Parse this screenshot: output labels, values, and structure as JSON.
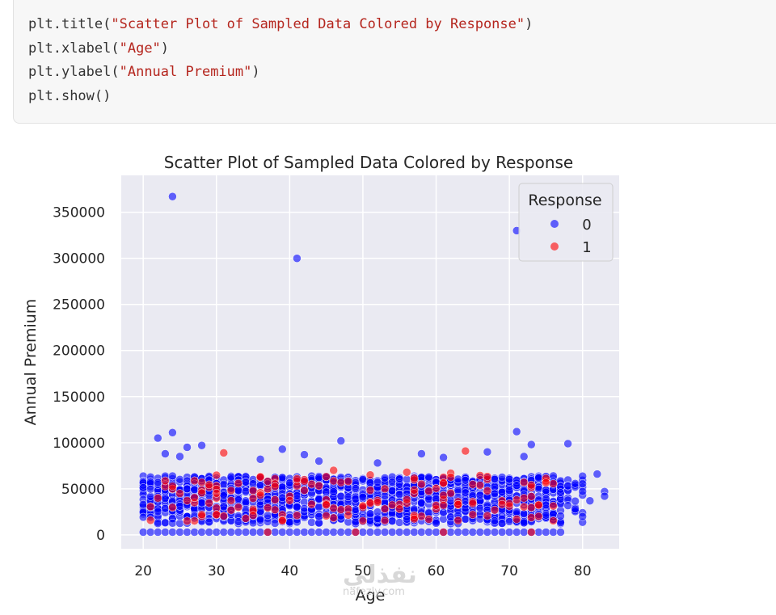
{
  "code": {
    "lines": [
      {
        "mod": "plt",
        "fn": ".title(",
        "str": "\"Scatter Plot of Sampled Data Colored by Response\"",
        "end": ")"
      },
      {
        "mod": "plt",
        "fn": ".xlabel(",
        "str": "\"Age\"",
        "end": ")"
      },
      {
        "mod": "plt",
        "fn": ".ylabel(",
        "str": "\"Annual Premium\"",
        "end": ")"
      },
      {
        "mod": "plt",
        "fn": ".show()",
        "str": "",
        "end": ""
      }
    ]
  },
  "watermark": {
    "logo": "نفذلي",
    "url": "nafezly.com"
  },
  "chart_data": {
    "type": "scatter",
    "title": "Scatter Plot of Sampled Data Colored by Response",
    "xlabel": "Age",
    "ylabel": "Annual Premium",
    "xlim": [
      17,
      85
    ],
    "ylim": [
      -15000,
      390000
    ],
    "xticks": [
      20,
      30,
      40,
      50,
      60,
      70,
      80
    ],
    "yticks": [
      0,
      50000,
      100000,
      150000,
      200000,
      250000,
      300000,
      350000
    ],
    "grid": true,
    "legend": {
      "title": "Response",
      "position": "top-right",
      "entries": [
        "0",
        "1"
      ]
    },
    "colors": {
      "0": "#0000ff",
      "1": "#ff0000",
      "background": "#eaeaf2"
    },
    "series": [
      {
        "name": "0",
        "points": [
          [
            24,
            367000
          ],
          [
            41,
            300000
          ],
          [
            71,
            330000
          ],
          [
            22,
            105000
          ],
          [
            24,
            111000
          ],
          [
            26,
            95000
          ],
          [
            28,
            97000
          ],
          [
            47,
            102000
          ],
          [
            71,
            112000
          ],
          [
            73,
            98000
          ],
          [
            78,
            99000
          ],
          [
            39,
            93000
          ],
          [
            42,
            87000
          ],
          [
            23,
            88000
          ],
          [
            25,
            85000
          ],
          [
            61,
            84000
          ],
          [
            58,
            88000
          ],
          [
            67,
            90000
          ],
          [
            72,
            85000
          ],
          [
            36,
            82000
          ],
          [
            44,
            80000
          ],
          [
            52,
            78000
          ],
          [
            82,
            66000
          ],
          [
            83,
            47000
          ],
          [
            83,
            42000
          ],
          [
            81,
            37000
          ],
          [
            80,
            20000
          ],
          [
            79,
            28000
          ]
        ]
      },
      {
        "name": "1",
        "points": [
          [
            31,
            89000
          ],
          [
            64,
            91000
          ],
          [
            46,
            70000
          ],
          [
            51,
            65000
          ],
          [
            56,
            68000
          ],
          [
            62,
            67000
          ],
          [
            38,
            61000
          ],
          [
            43,
            55000
          ],
          [
            48,
            58000
          ],
          [
            53,
            50000
          ],
          [
            57,
            45000
          ],
          [
            35,
            48000
          ],
          [
            30,
            40000
          ],
          [
            27,
            35000
          ],
          [
            40,
            42000
          ],
          [
            45,
            38000
          ],
          [
            50,
            30000
          ],
          [
            55,
            33000
          ],
          [
            60,
            28000
          ],
          [
            65,
            36000
          ],
          [
            68,
            27000
          ],
          [
            72,
            40000
          ],
          [
            33,
            30000
          ],
          [
            25,
            45000
          ],
          [
            58,
            55000
          ],
          [
            49,
            3000
          ],
          [
            61,
            3000
          ],
          [
            73,
            3000
          ],
          [
            37,
            3000
          ]
        ]
      }
    ]
  }
}
